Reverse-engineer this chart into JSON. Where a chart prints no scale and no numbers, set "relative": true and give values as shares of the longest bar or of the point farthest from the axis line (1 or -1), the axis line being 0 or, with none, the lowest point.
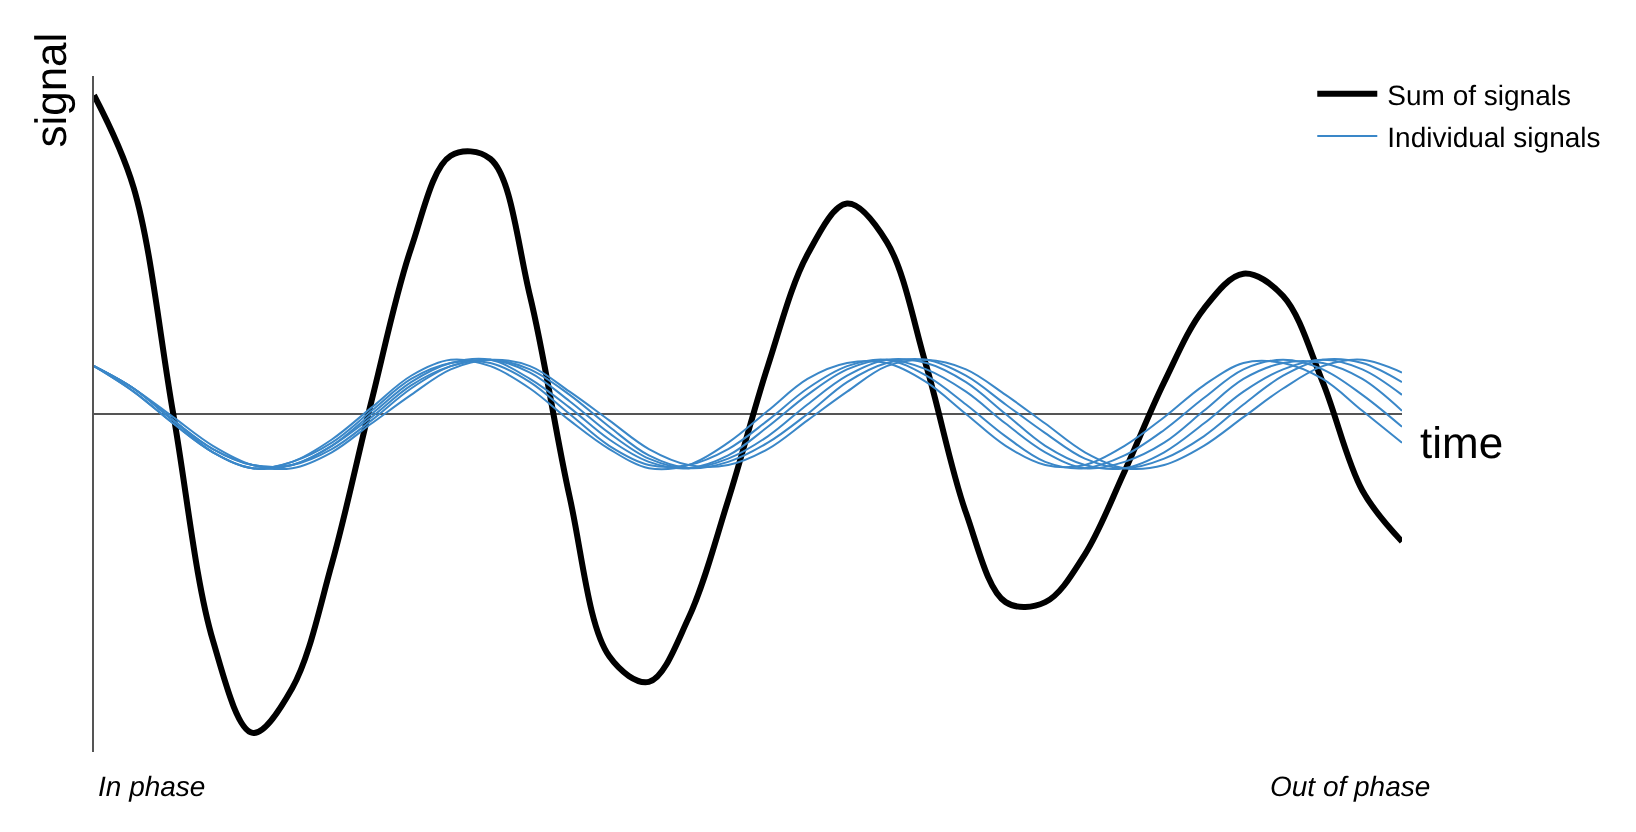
{
  "chart_data": {
    "type": "line",
    "relative": true,
    "xlabel": "time",
    "ylabel": "signal",
    "legend": "top right",
    "tick_labels": false,
    "annotations": [
      "In phase",
      "Out of phase"
    ],
    "categories": [
      null,
      null,
      null,
      null,
      null,
      null,
      null,
      null,
      null,
      null,
      null,
      null,
      null,
      null,
      null,
      null,
      null,
      null,
      null,
      null,
      null,
      null,
      null,
      null,
      null,
      null,
      null,
      null,
      null,
      null,
      null,
      null,
      null,
      null
    ],
    "series": [
      {
        "name": "Sum of signals",
        "color": "#000000",
        "values": [
          1.0,
          0.71,
          0,
          -0.71,
          -1.0,
          -0.86,
          -0.47,
          0.04,
          0.52,
          0.81,
          0.8,
          0.37,
          -0.26,
          -0.76,
          -0.84,
          -0.64,
          -0.27,
          0.15,
          0.5,
          0.66,
          0.54,
          0.15,
          -0.31,
          -0.59,
          -0.59,
          -0.44,
          -0.18,
          0.1,
          0.33,
          0.44,
          0.37,
          0.1,
          -0.24,
          -0.4
        ]
      },
      {
        "name": "Individual signals",
        "color": "#3a87c8",
        "values": [
          0.15,
          0.07,
          -0.03,
          -0.12,
          -0.17,
          -0.15,
          -0.08,
          0.02,
          0.12,
          0.17,
          0.15,
          0.08,
          -0.02,
          -0.11,
          -0.17,
          -0.16,
          -0.09,
          0.01,
          0.11,
          0.16,
          0.16,
          0.1,
          0.0,
          -0.1,
          -0.16,
          -0.16,
          -0.1,
          -0.01,
          0.09,
          0.16,
          0.16,
          0.11,
          0.01,
          -0.09
        ]
      },
      {
        "color": "#3a87c8",
        "values": [
          0.15,
          0.07,
          -0.03,
          -0.12,
          -0.17,
          -0.15,
          -0.09,
          0.01,
          0.11,
          0.16,
          0.16,
          0.1,
          0.0,
          -0.1,
          -0.16,
          -0.16,
          -0.11,
          -0.02,
          0.08,
          0.15,
          0.17,
          0.12,
          0.03,
          -0.07,
          -0.15,
          -0.17,
          -0.13,
          -0.05,
          0.05,
          0.14,
          0.17,
          0.14,
          0.06,
          -0.04
        ]
      },
      {
        "color": "#3a87c8",
        "values": [
          0.15,
          0.08,
          -0.02,
          -0.12,
          -0.17,
          -0.16,
          -0.1,
          0.0,
          0.1,
          0.16,
          0.17,
          0.11,
          0.02,
          -0.08,
          -0.15,
          -0.17,
          -0.13,
          -0.04,
          0.06,
          0.14,
          0.17,
          0.14,
          0.07,
          -0.03,
          -0.12,
          -0.17,
          -0.15,
          -0.09,
          0.01,
          0.11,
          0.16,
          0.16,
          0.11,
          0.01
        ]
      },
      {
        "color": "#3a87c8",
        "values": [
          0.15,
          0.08,
          -0.02,
          -0.11,
          -0.16,
          -0.16,
          -0.1,
          -0.01,
          0.09,
          0.15,
          0.17,
          0.13,
          0.04,
          -0.06,
          -0.14,
          -0.17,
          -0.14,
          -0.07,
          0.03,
          0.12,
          0.17,
          0.16,
          0.1,
          0.0,
          -0.1,
          -0.16,
          -0.17,
          -0.12,
          -0.03,
          0.07,
          0.14,
          0.17,
          0.14,
          0.06
        ]
      },
      {
        "color": "#3a87c8",
        "values": [
          0.15,
          0.08,
          -0.02,
          -0.11,
          -0.16,
          -0.16,
          -0.11,
          -0.02,
          0.08,
          0.15,
          0.17,
          0.14,
          0.06,
          -0.04,
          -0.13,
          -0.17,
          -0.15,
          -0.09,
          0.0,
          0.1,
          0.16,
          0.17,
          0.12,
          0.03,
          -0.06,
          -0.14,
          -0.17,
          -0.14,
          -0.07,
          0.03,
          0.12,
          0.17,
          0.16,
          0.1
        ]
      },
      {
        "color": "#3a87c8",
        "values": [
          0.15,
          0.08,
          -0.01,
          -0.1,
          -0.16,
          -0.17,
          -0.12,
          -0.03,
          0.06,
          0.14,
          0.17,
          0.15,
          0.07,
          -0.02,
          -0.11,
          -0.16,
          -0.16,
          -0.11,
          -0.02,
          0.07,
          0.15,
          0.17,
          0.14,
          0.06,
          -0.03,
          -0.12,
          -0.17,
          -0.16,
          -0.1,
          -0.01,
          0.08,
          0.15,
          0.17,
          0.13
        ]
      }
    ]
  }
}
